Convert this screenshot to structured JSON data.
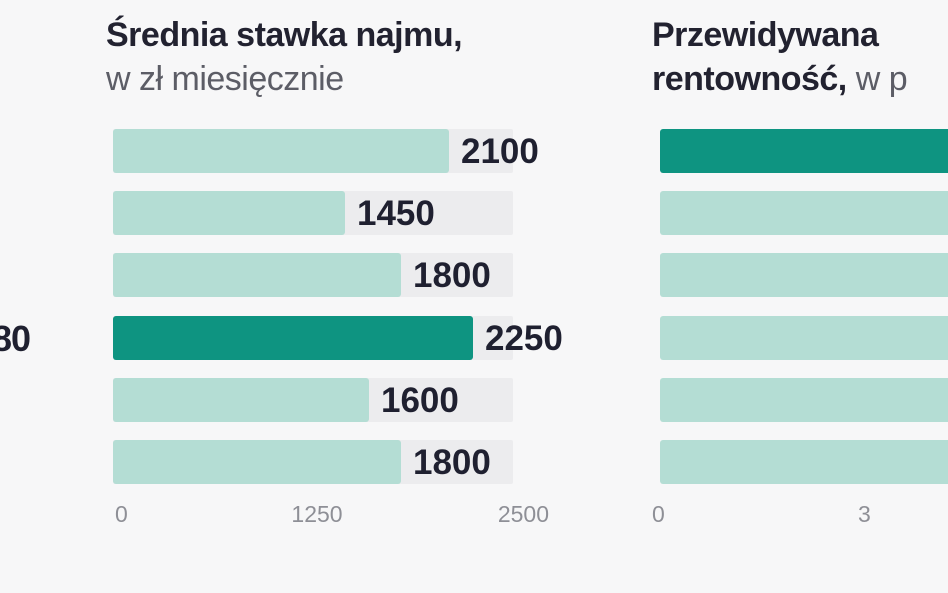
{
  "left_panel": {
    "partial_value": "80"
  },
  "charts": {
    "left": {
      "title_bold": "Średnia stawka najmu,",
      "title_sub": "w zł miesięcznie"
    },
    "right": {
      "title_line1": "Przewidywana",
      "title_line2_bold": "rentowność,",
      "title_line2_sub": "w p"
    }
  },
  "colors": {
    "bar_default": "#b4ddd4",
    "bar_highlight": "#0e9481",
    "track": "#ececee",
    "text": "#1f2030",
    "tick_text": "#8e8f96"
  },
  "chart_data": [
    {
      "type": "bar",
      "orientation": "horizontal",
      "title": "Średnia stawka najmu,",
      "subtitle": "w zł miesięcznie",
      "values": [
        2100,
        1450,
        1800,
        2250,
        1600,
        1800
      ],
      "value_labels": [
        "2100",
        "1450",
        "1800",
        "2250",
        "1600",
        "1800"
      ],
      "highlight_index": 3,
      "xlim": [
        0,
        2500
      ],
      "xticks": [
        0,
        1250,
        2500
      ],
      "xtick_labels": [
        "0",
        "1250",
        "2500"
      ],
      "grid": false
    },
    {
      "type": "bar",
      "orientation": "horizontal",
      "title": "Przewidywana rentowność,",
      "subtitle": "w p",
      "bar_count": 6,
      "highlight_index": 0,
      "xtick_labels": [
        "0",
        "3"
      ],
      "note": ""
    }
  ]
}
